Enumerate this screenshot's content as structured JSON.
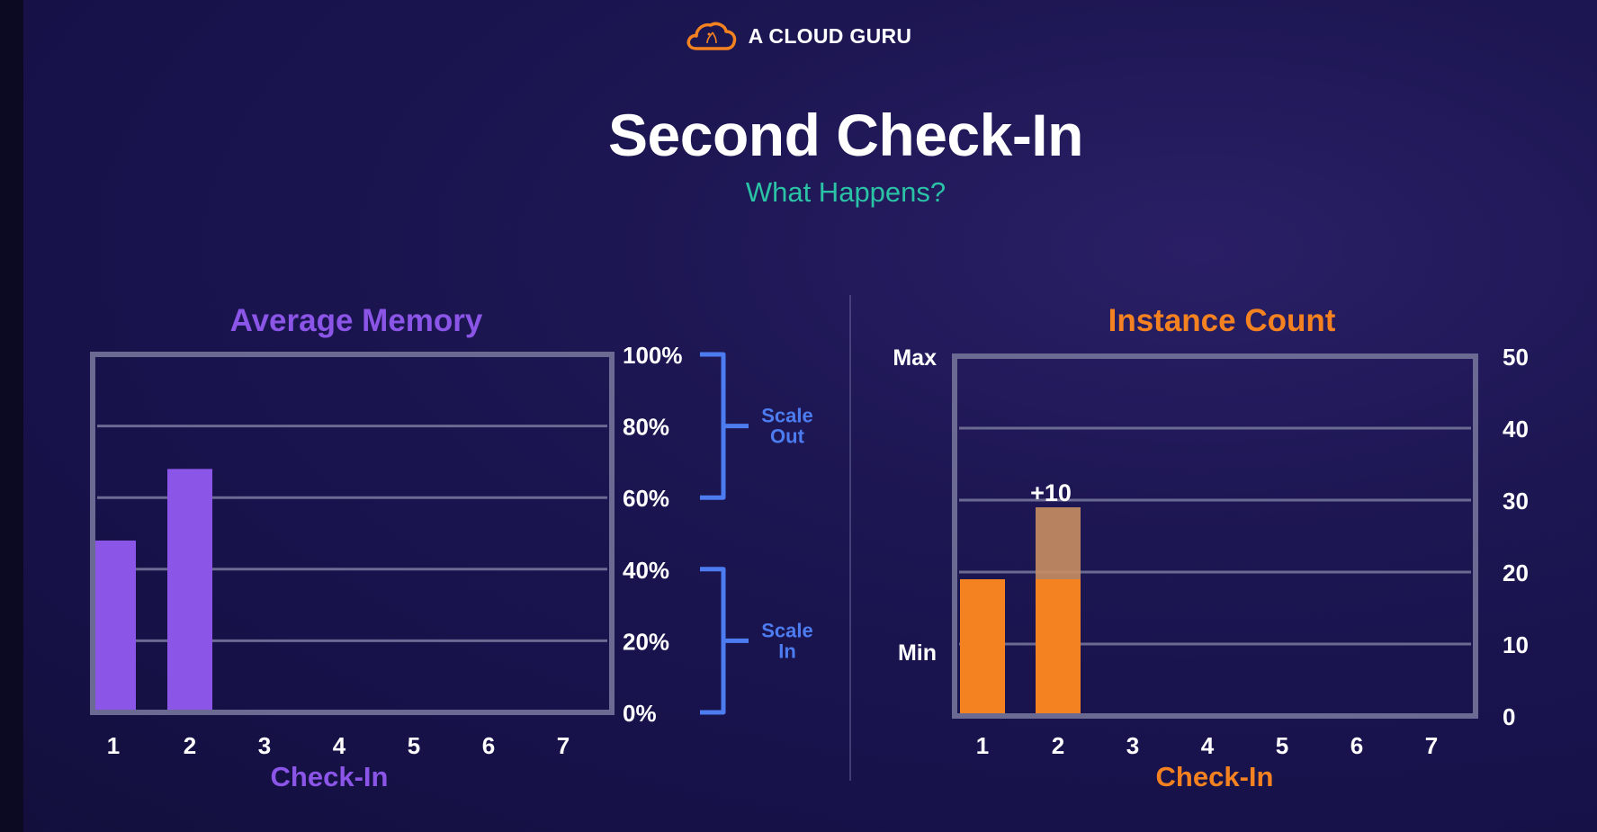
{
  "brand": {
    "name": "A CLOUD GURU",
    "logo_icon": "cloud-logo-icon"
  },
  "title": "Second Check-In",
  "subtitle": "What Happens?",
  "colors": {
    "memory": "#8b55e8",
    "instances": "#f58220",
    "instances_added": "#c98e62",
    "bracket": "#4c7cf0",
    "subtitle": "#2bc3a6",
    "frame": "#6b6a92",
    "gridline": "#6b6a92"
  },
  "chart_data": [
    {
      "type": "bar",
      "title": "Average Memory",
      "xlabel": "Check-In",
      "ylabel": "",
      "categories": [
        "1",
        "2",
        "3",
        "4",
        "5",
        "6",
        "7"
      ],
      "values": [
        48,
        68,
        null,
        null,
        null,
        null,
        null
      ],
      "ylim": [
        0,
        100
      ],
      "yticks": [
        "0%",
        "20%",
        "40%",
        "60%",
        "80%",
        "100%"
      ],
      "ytick_values": [
        0,
        20,
        40,
        60,
        80,
        100
      ],
      "grid": true,
      "brackets": [
        {
          "label_line1": "Scale",
          "label_line2": "Out",
          "from": 60,
          "to": 100
        },
        {
          "label_line1": "Scale",
          "label_line2": "In",
          "from": 0,
          "to": 40
        }
      ]
    },
    {
      "type": "bar",
      "title": "Instance Count",
      "xlabel": "Check-In",
      "ylabel": "",
      "categories": [
        "1",
        "2",
        "3",
        "4",
        "5",
        "6",
        "7"
      ],
      "values": [
        19,
        19,
        null,
        null,
        null,
        null,
        null
      ],
      "added": [
        0,
        10,
        null,
        null,
        null,
        null,
        null
      ],
      "added_label": "+10",
      "ylim": [
        0,
        50
      ],
      "yticks": [
        "0",
        "10",
        "20",
        "30",
        "40",
        "50"
      ],
      "ytick_values": [
        0,
        10,
        20,
        30,
        40,
        50
      ],
      "grid": true,
      "markers": [
        {
          "label": "Max",
          "value": 50
        },
        {
          "label": "Min",
          "value": 9
        }
      ]
    }
  ]
}
